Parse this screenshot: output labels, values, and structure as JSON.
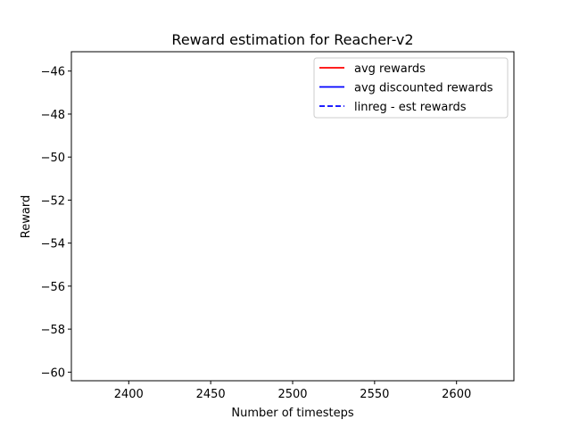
{
  "chart_data": {
    "type": "line",
    "title": "Reward estimation for Reacher-v2",
    "xlabel": "Number of timesteps",
    "ylabel": "Reward",
    "xlim": [
      2365,
      2635
    ],
    "ylim": [
      -60.4,
      -45.1
    ],
    "x_ticks": [
      2400,
      2450,
      2500,
      2550,
      2600
    ],
    "y_ticks": [
      -46,
      -48,
      -50,
      -52,
      -54,
      -56,
      -58,
      -60
    ],
    "grid": false,
    "legend_position": "top-right",
    "series": [
      {
        "name": "avg rewards",
        "color": "#ff0000",
        "style": "solid",
        "x": [],
        "y": []
      },
      {
        "name": "avg discounted rewards",
        "color": "#0000ff",
        "style": "solid",
        "x": [],
        "y": []
      },
      {
        "name": "linreg - est rewards",
        "color": "#0000ff",
        "style": "dashed",
        "x": [],
        "y": []
      }
    ]
  }
}
